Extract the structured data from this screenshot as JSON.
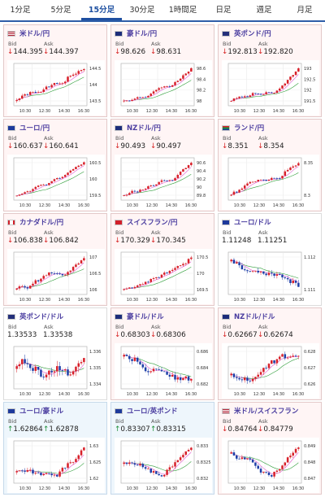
{
  "tabs": [
    "1分足",
    "5分足",
    "15分足",
    "30分足",
    "1時間足",
    "日足",
    "週足",
    "月足"
  ],
  "active_tab": 2,
  "bid_label": "Bid",
  "ask_label": "Ask",
  "time_labels": [
    "10:30",
    "12:30",
    "14:30",
    "16:30"
  ],
  "colors": {
    "down_bg": "#fff5f5",
    "up_bg": "#eef6fc",
    "red": "#d62020",
    "green": "#1f8f3a",
    "candle_up": "#d8202a",
    "candle_down": "#1e3fa8",
    "ma1": "#e35bd1",
    "ma2": "#2f9e3a"
  },
  "pairs": [
    {
      "name": "米ドル/円",
      "flag": "us",
      "dir": "down",
      "bid": "144.395",
      "ask": "144.397",
      "y_ticks": [
        "144.5",
        "144",
        "143.5"
      ],
      "trend": "up"
    },
    {
      "name": "豪ドル/円",
      "flag": "au",
      "dir": "down",
      "bid": "98.626",
      "ask": "98.631",
      "y_ticks": [
        "98.6",
        "98.4",
        "98.2",
        "98"
      ],
      "trend": "up"
    },
    {
      "name": "英ポンド/円",
      "flag": "gb",
      "dir": "down",
      "bid": "192.813",
      "ask": "192.820",
      "y_ticks": [
        "193",
        "192.5",
        "192",
        "191.5"
      ],
      "trend": "up"
    },
    {
      "name": "ユーロ/円",
      "flag": "eu",
      "dir": "down",
      "bid": "160.637",
      "ask": "160.641",
      "y_ticks": [
        "160.5",
        "160",
        "159.5"
      ],
      "trend": "up"
    },
    {
      "name": "NZドル/円",
      "flag": "nz",
      "dir": "down",
      "bid": "90.493",
      "ask": "90.497",
      "y_ticks": [
        "90.6",
        "90.4",
        "90.2",
        "90",
        "89.8"
      ],
      "trend": "up"
    },
    {
      "name": "ランド/円",
      "flag": "za",
      "dir": "down",
      "bid": "8.351",
      "ask": "8.354",
      "y_ticks": [
        "8.35",
        "8.3"
      ],
      "trend": "up"
    },
    {
      "name": "カナダドル/円",
      "flag": "ca",
      "dir": "down",
      "bid": "106.838",
      "ask": "106.842",
      "y_ticks": [
        "107",
        "106.5",
        "106"
      ],
      "trend": "up"
    },
    {
      "name": "スイスフラン/円",
      "flag": "ch",
      "dir": "down",
      "bid": "170.329",
      "ask": "170.345",
      "y_ticks": [
        "170.5",
        "170",
        "169.5"
      ],
      "trend": "up"
    },
    {
      "name": "ユーロ/ドル",
      "flag": "eu",
      "dir": "none",
      "bid": "1.11248",
      "ask": "1.11251",
      "y_ticks": [
        "1.112",
        "1.111"
      ],
      "trend": "flat"
    },
    {
      "name": "英ポンド/ドル",
      "flag": "gb",
      "dir": "none",
      "bid": "1.33533",
      "ask": "1.33538",
      "y_ticks": [
        "1.336",
        "1.335",
        "1.334"
      ],
      "trend": "flat"
    },
    {
      "name": "豪ドル/ドル",
      "flag": "au",
      "dir": "down",
      "bid": "0.68303",
      "ask": "0.68306",
      "y_ticks": [
        "0.686",
        "0.684",
        "0.682"
      ],
      "trend": "flat"
    },
    {
      "name": "NZドル/ドル",
      "flag": "nz",
      "dir": "down",
      "bid": "0.62667",
      "ask": "0.62674",
      "y_ticks": [
        "0.628",
        "0.627",
        "0.626"
      ],
      "trend": "flat"
    },
    {
      "name": "ユーロ/豪ドル",
      "flag": "eu",
      "dir": "up",
      "bid": "1.62864",
      "ask": "1.62878",
      "y_ticks": [
        "1.63",
        "1.625",
        "1.62"
      ],
      "trend": "dip"
    },
    {
      "name": "ユーロ/英ポンド",
      "flag": "eu",
      "dir": "up",
      "bid": "0.83307",
      "ask": "0.83315",
      "y_ticks": [
        "0.833",
        "0.8325",
        "0.832"
      ],
      "trend": "dip"
    },
    {
      "name": "米ドル/スイスフラン",
      "flag": "us",
      "dir": "down",
      "bid": "0.84764",
      "ask": "0.84779",
      "y_ticks": [
        "0.849",
        "0.848",
        "0.847"
      ],
      "trend": "dip"
    }
  ]
}
